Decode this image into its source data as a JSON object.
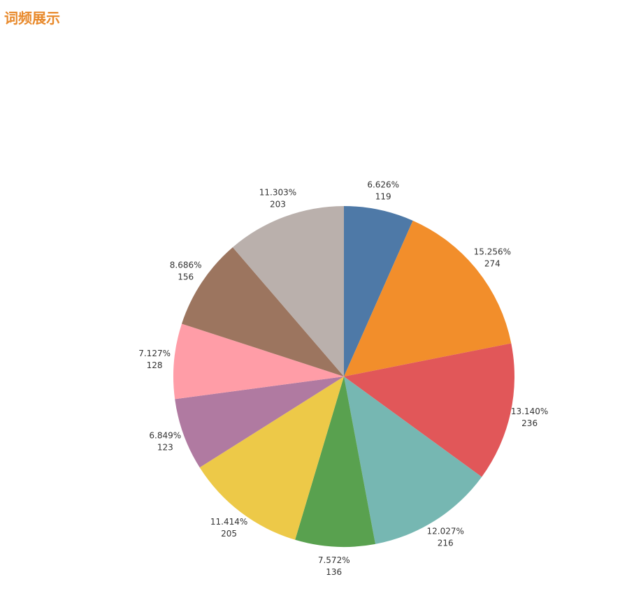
{
  "chart_data": {
    "type": "pie",
    "title": "词频展示",
    "values": [
      119,
      274,
      236,
      216,
      136,
      205,
      123,
      128,
      156,
      203
    ],
    "percent_labels": [
      "6.626%",
      "15.256%",
      "13.140%",
      "12.027%",
      "7.572%",
      "11.414%",
      "6.849%",
      "7.127%",
      "8.686%",
      "11.303%"
    ],
    "colors": [
      "#4e79a7",
      "#f28e2b",
      "#e15759",
      "#76b7b2",
      "#59a14f",
      "#edc948",
      "#b07aa1",
      "#ff9da7",
      "#9c755f",
      "#bab0ac"
    ]
  }
}
